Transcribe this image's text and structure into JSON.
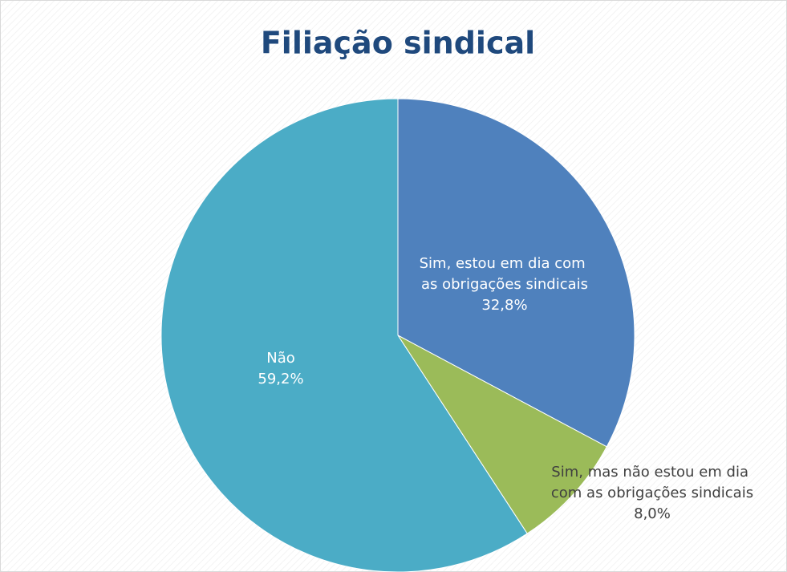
{
  "chart_data": {
    "type": "pie",
    "title": "Filiação sindical",
    "categories": [
      "Sim, estou em dia com as obrigações sindicais",
      "Sim, mas não estou em dia com as obrigações sindicais",
      "Não"
    ],
    "values": [
      32.8,
      8.0,
      59.2
    ],
    "value_labels": [
      "32,8%",
      "8,0%",
      "59,2%"
    ],
    "colors": [
      "#4f81bd",
      "#9bbb59",
      "#4bacc6"
    ]
  }
}
